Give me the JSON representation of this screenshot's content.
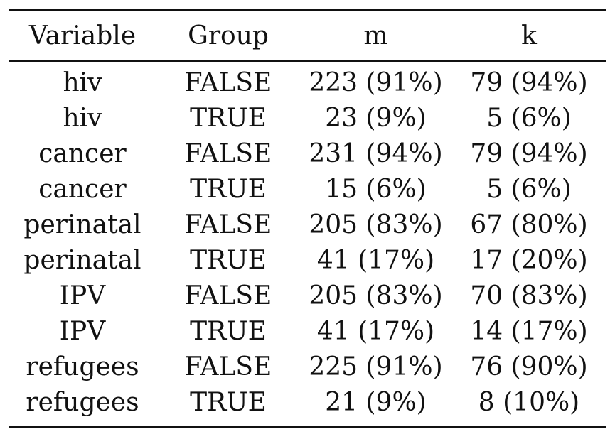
{
  "table": {
    "headers": [
      "Variable",
      "Group",
      "m",
      "k"
    ],
    "rows": [
      [
        "hiv",
        "FALSE",
        "223 (91%)",
        "79 (94%)"
      ],
      [
        "hiv",
        "TRUE",
        "23 (9%)",
        "5 (6%)"
      ],
      [
        "cancer",
        "FALSE",
        "231 (94%)",
        "79 (94%)"
      ],
      [
        "cancer",
        "TRUE",
        "15 (6%)",
        "5 (6%)"
      ],
      [
        "perinatal",
        "FALSE",
        "205 (83%)",
        "67 (80%)"
      ],
      [
        "perinatal",
        "TRUE",
        "41 (17%)",
        "17 (20%)"
      ],
      [
        "IPV",
        "FALSE",
        "205 (83%)",
        "70 (83%)"
      ],
      [
        "IPV",
        "TRUE",
        "41 (17%)",
        "14 (17%)"
      ],
      [
        "refugees",
        "FALSE",
        "225 (91%)",
        "76 (90%)"
      ],
      [
        "refugees",
        "TRUE",
        "21 (9%)",
        "8 (10%)"
      ]
    ]
  }
}
